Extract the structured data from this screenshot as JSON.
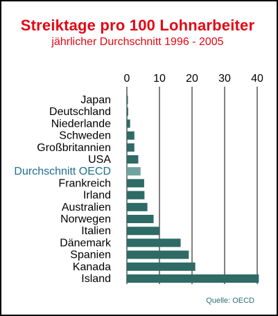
{
  "chart_data": {
    "type": "bar",
    "orientation": "horizontal",
    "title": "Streiktage pro 100 Lohnarbeiter",
    "subtitle": "jährlicher Durchschnitt 1996 - 2005",
    "categories": [
      "Japan",
      "Deutschland",
      "Niederlande",
      "Schweden",
      "Großbritannien",
      "USA",
      "Durchschnitt OECD",
      "Frankreich",
      "Irland",
      "Australien",
      "Norwegen",
      "Italien",
      "Dänemark",
      "Spanien",
      "Kanada",
      "Island"
    ],
    "values": [
      0.2,
      0.4,
      1.0,
      2.3,
      2.3,
      3.5,
      4.2,
      5.3,
      5.4,
      6.3,
      8.2,
      10.0,
      16.5,
      19.0,
      21.0,
      40.5
    ],
    "highlight": "Durchschnitt OECD",
    "x_ticks": [
      0,
      10,
      20,
      30,
      40
    ],
    "xlim": [
      0,
      41
    ],
    "grid": true,
    "xaxis_position": "top",
    "colors": {
      "bar": "#2e6a66",
      "highlight_bar": "#6fa3a0",
      "highlight_label": "#1d6f8a",
      "label": "#000000",
      "title": "#e30613",
      "source": "#2c6e78"
    },
    "source": "Quelle: OECD"
  }
}
